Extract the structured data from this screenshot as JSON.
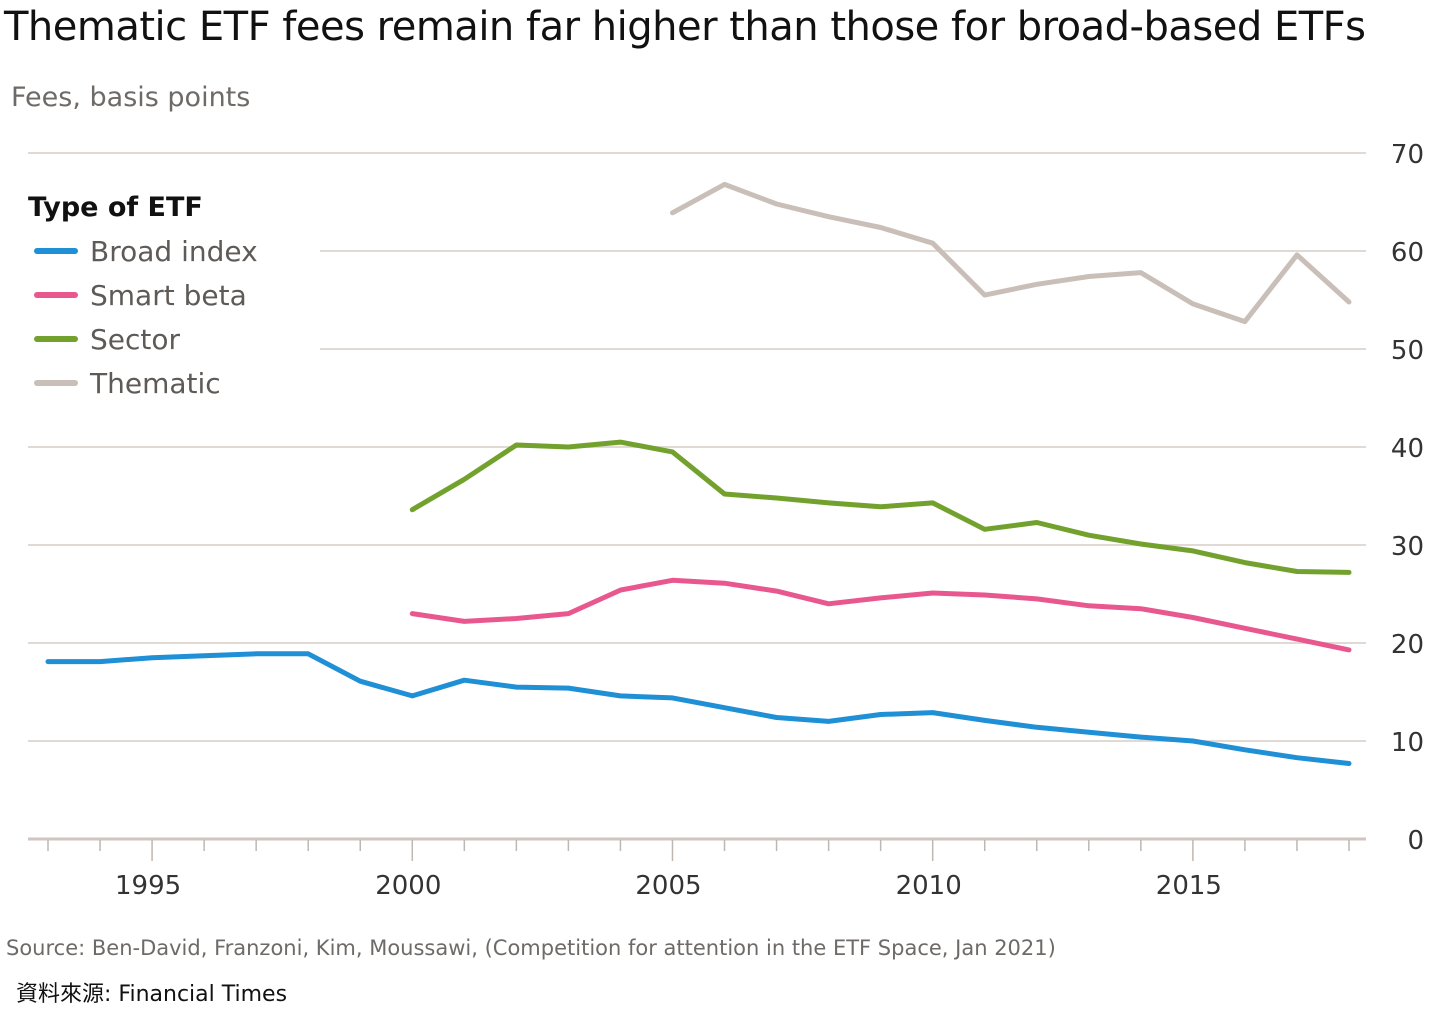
{
  "chart_data": {
    "type": "line",
    "title": "Thematic ETF fees remain far higher than those for broad-based ETFs",
    "subtitle": "Fees, basis points",
    "xlabel": "",
    "ylabel": "Fees, basis points",
    "xlim": [
      1993,
      2018
    ],
    "ylim": [
      0,
      70
    ],
    "x_ticks": [
      1995,
      2000,
      2005,
      2010,
      2015
    ],
    "x_tick_labels": [
      "1995",
      "2000",
      "2005",
      "2010",
      "2015"
    ],
    "y_ticks": [
      0,
      10,
      20,
      30,
      40,
      50,
      60,
      70
    ],
    "y_tick_labels": [
      "0",
      "10",
      "20",
      "30",
      "40",
      "50",
      "60",
      "70"
    ],
    "y_axis_side": "right",
    "grid": true,
    "legend": {
      "title": "Type of ETF",
      "placement": "top-left"
    },
    "series": [
      {
        "name": "Broad index",
        "color": "#1f8fd6",
        "x": [
          1993,
          1994,
          1995,
          1996,
          1997,
          1998,
          1999,
          2000,
          2001,
          2002,
          2003,
          2004,
          2005,
          2006,
          2007,
          2008,
          2009,
          2010,
          2011,
          2012,
          2013,
          2014,
          2015,
          2016,
          2017,
          2018
        ],
        "values": [
          18.1,
          18.1,
          18.5,
          18.7,
          18.9,
          18.9,
          16.1,
          14.6,
          16.2,
          15.5,
          15.4,
          14.6,
          14.4,
          13.4,
          12.4,
          12.0,
          12.7,
          12.9,
          12.1,
          11.4,
          10.9,
          10.4,
          10.0,
          9.1,
          8.3,
          7.7
        ]
      },
      {
        "name": "Smart beta",
        "color": "#e8588f",
        "x": [
          2000,
          2001,
          2002,
          2003,
          2004,
          2005,
          2006,
          2007,
          2008,
          2009,
          2010,
          2011,
          2012,
          2013,
          2014,
          2015,
          2016,
          2017,
          2018
        ],
        "values": [
          23.0,
          22.2,
          22.5,
          23.0,
          25.4,
          26.4,
          26.1,
          25.3,
          24.0,
          24.6,
          25.1,
          24.9,
          24.5,
          23.8,
          23.5,
          22.6,
          21.5,
          20.4,
          19.3
        ]
      },
      {
        "name": "Sector",
        "color": "#73a12e",
        "x": [
          2000,
          2001,
          2002,
          2003,
          2004,
          2005,
          2006,
          2007,
          2008,
          2009,
          2010,
          2011,
          2012,
          2013,
          2014,
          2015,
          2016,
          2017,
          2018
        ],
        "values": [
          33.6,
          36.7,
          40.2,
          40.0,
          40.5,
          39.5,
          35.2,
          34.8,
          34.3,
          33.9,
          34.3,
          31.6,
          32.3,
          31.0,
          30.1,
          29.4,
          28.2,
          27.3,
          27.2
        ]
      },
      {
        "name": "Thematic",
        "color": "#c9bfb8",
        "x": [
          2005,
          2006,
          2007,
          2008,
          2009,
          2010,
          2011,
          2012,
          2013,
          2014,
          2015,
          2016,
          2017,
          2018
        ],
        "values": [
          63.9,
          66.8,
          64.8,
          63.5,
          62.4,
          60.8,
          55.5,
          56.6,
          57.4,
          57.8,
          54.6,
          52.8,
          59.6,
          54.8
        ]
      }
    ],
    "annotations": []
  },
  "footer": {
    "source": "Source: Ben-David, Franzoni, Kim, Moussawi, (Competition for attention in the ETF Space, Jan 2021)",
    "credit": "資料來源: Financial Times"
  },
  "colors": {
    "grid": "#e0d9d4",
    "axis_text": "#333333"
  }
}
